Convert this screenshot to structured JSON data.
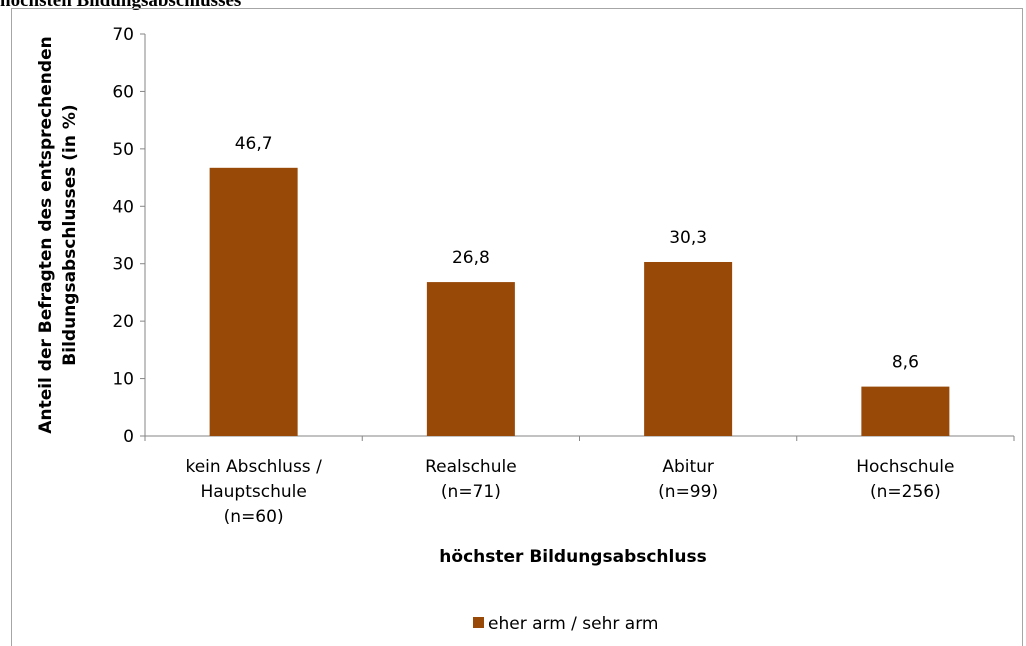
{
  "header": {
    "cut_title": "höchsten Bildungsabschlusses"
  },
  "chart_data": {
    "type": "bar",
    "title": "",
    "xlabel": "höchster Bildungsabschluss",
    "ylabel_lines": [
      "Anteil der Befragten des entsprechenden",
      "Bildungsabschlusses (in %)"
    ],
    "ylim": [
      0,
      70
    ],
    "yticks": [
      0,
      10,
      20,
      30,
      40,
      50,
      60,
      70
    ],
    "categories": [
      [
        "kein Abschluss /",
        "Hauptschule",
        "(n=60)"
      ],
      [
        "Realschule",
        "(n=71)"
      ],
      [
        "Abitur",
        "(n=99)"
      ],
      [
        "Hochschule",
        "(n=256)"
      ]
    ],
    "series": [
      {
        "name": "eher arm / sehr arm",
        "values": [
          46.7,
          26.8,
          30.3,
          8.6
        ],
        "value_labels": [
          "46,7",
          "26,8",
          "30,3",
          "8,6"
        ],
        "color": "#984807"
      }
    ],
    "grid": false,
    "legend_position": "bottom"
  }
}
